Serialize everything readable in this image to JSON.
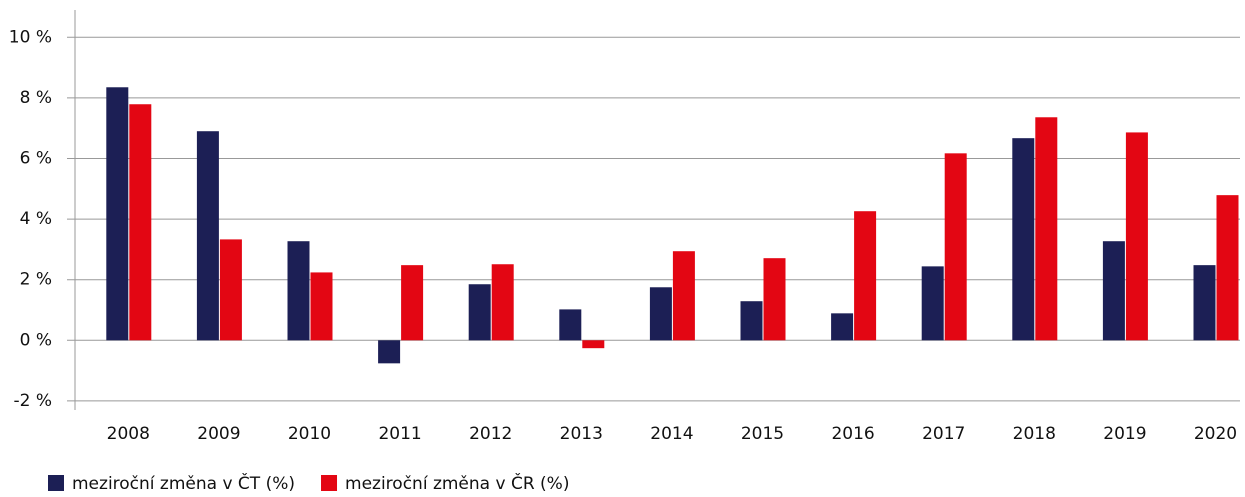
{
  "chart_data": {
    "type": "bar",
    "categories": [
      "2008",
      "2009",
      "2010",
      "2011",
      "2012",
      "2013",
      "2014",
      "2015",
      "2016",
      "2017",
      "2018",
      "2019",
      "2020"
    ],
    "series": [
      {
        "name": "meziroční změna v ČT (%)",
        "color": "#1c1f55",
        "values": [
          8.35,
          6.9,
          3.27,
          -0.76,
          1.85,
          1.02,
          1.75,
          1.29,
          0.89,
          2.44,
          6.67,
          3.27,
          2.48
        ]
      },
      {
        "name": "meziroční změna v ČR (%)",
        "color": "#e30613",
        "values": [
          7.79,
          3.33,
          2.24,
          2.48,
          2.51,
          -0.26,
          2.94,
          2.71,
          4.26,
          6.17,
          7.36,
          6.86,
          4.79
        ]
      }
    ],
    "ylim": [
      -2.3,
      10.9
    ],
    "yticks": [
      {
        "value": -2,
        "label": "-2 %"
      },
      {
        "value": 0,
        "label": "0 %"
      },
      {
        "value": 2,
        "label": "2 %"
      },
      {
        "value": 4,
        "label": "4 %"
      },
      {
        "value": 6,
        "label": "6 %"
      },
      {
        "value": 8,
        "label": "8 %"
      },
      {
        "value": 10,
        "label": "10 %"
      }
    ],
    "grid": true,
    "legend": "bottom-left"
  }
}
